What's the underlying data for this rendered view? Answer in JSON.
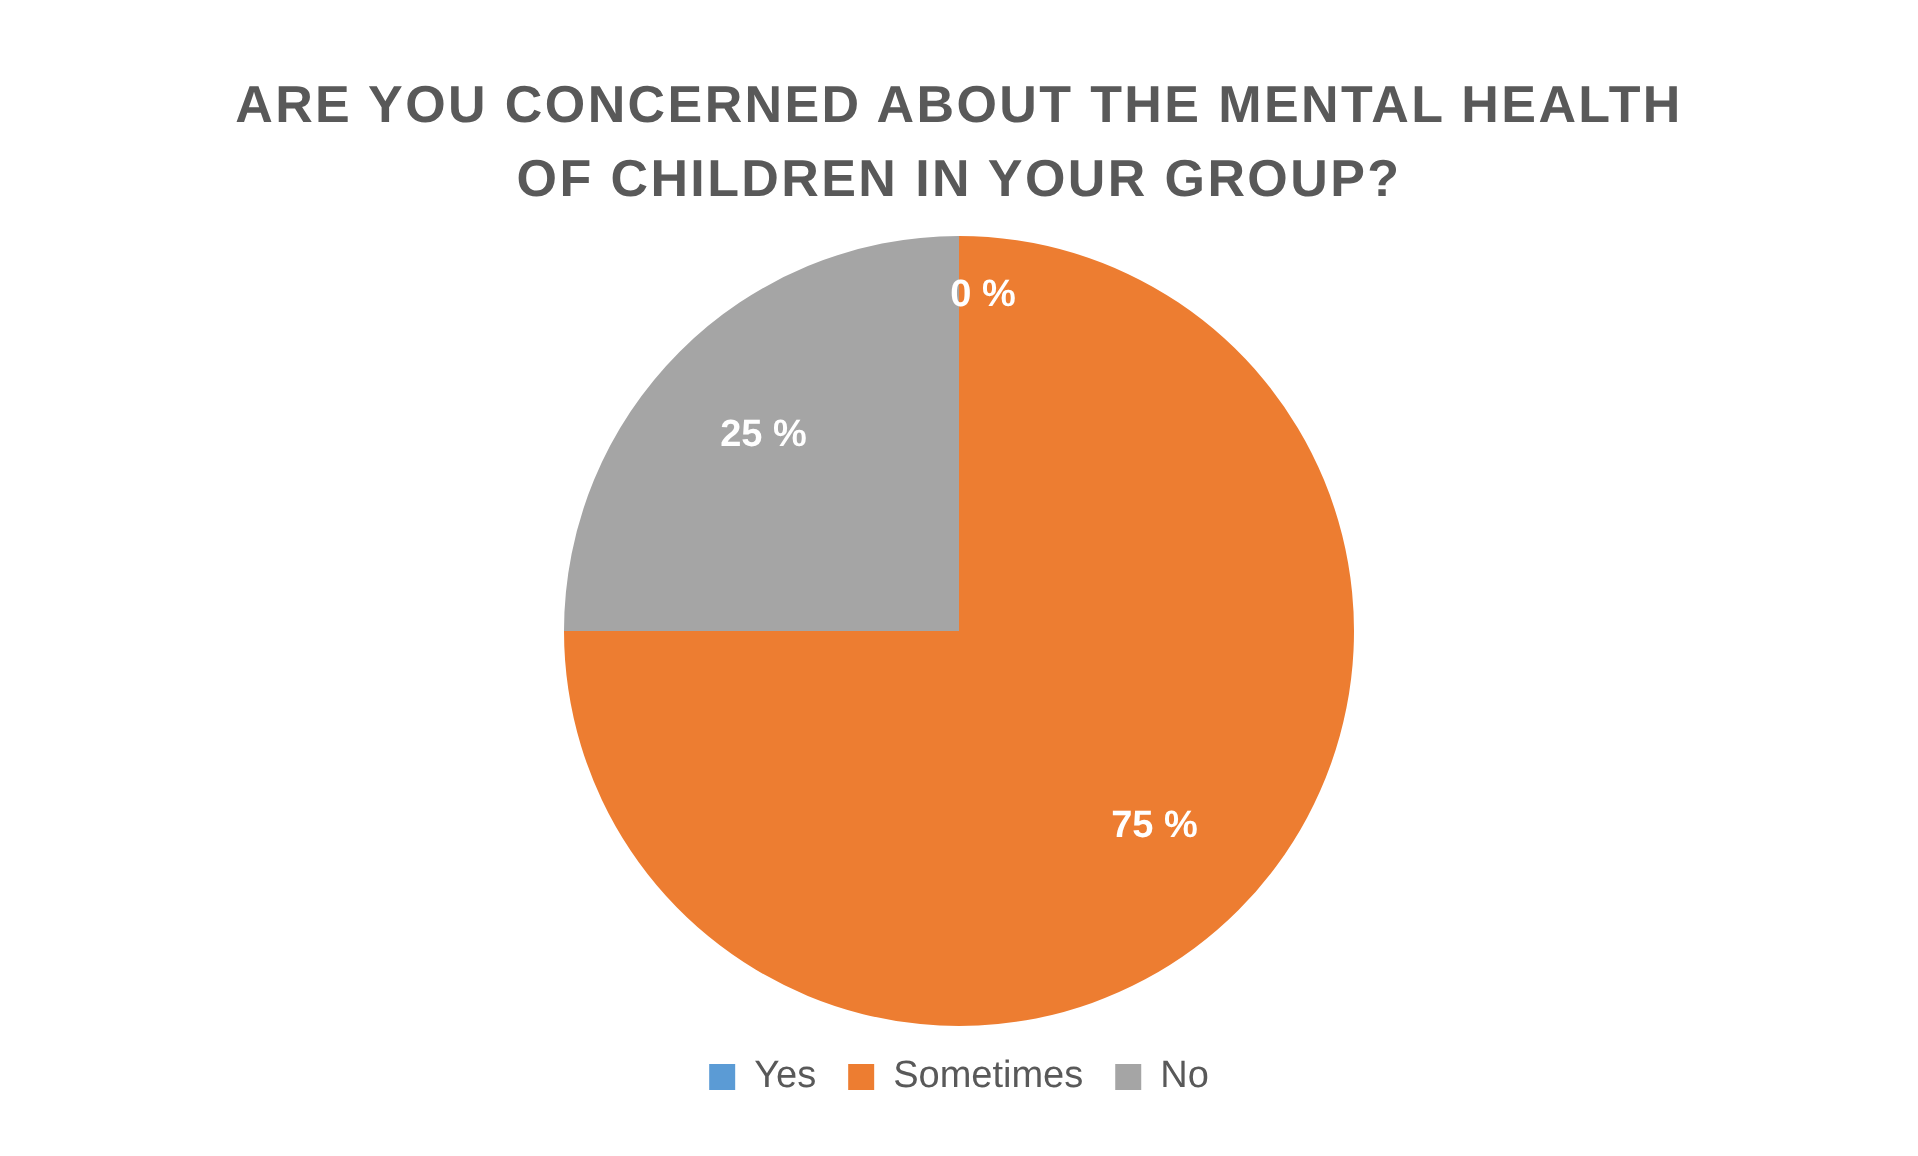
{
  "chart_data": {
    "type": "pie",
    "title": "ARE YOU CONCERNED ABOUT THE MENTAL HEALTH OF CHILDREN IN YOUR GROUP?",
    "categories": [
      "Yes",
      "Sometimes",
      "No"
    ],
    "values": [
      0,
      75,
      25
    ],
    "colors": [
      "#5b9bd5",
      "#ed7d31",
      "#a5a5a5"
    ],
    "value_labels": [
      "0 %",
      "75 %",
      "25 %"
    ],
    "legend": "bottom"
  }
}
